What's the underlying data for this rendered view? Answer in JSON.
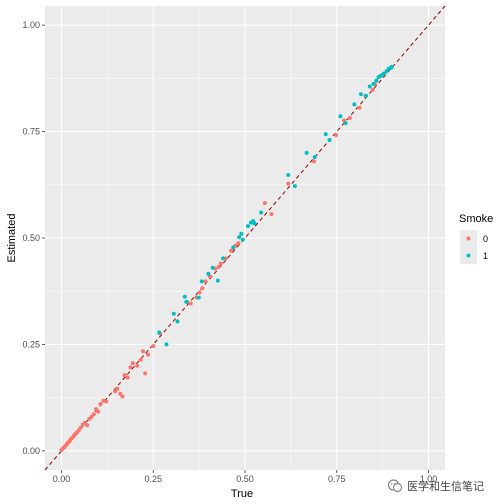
{
  "chart_data": {
    "type": "scatter",
    "title": "",
    "xlabel": "True",
    "ylabel": "Estimated",
    "xlim": [
      -0.045,
      1.045
    ],
    "ylim": [
      -0.045,
      1.045
    ],
    "x_ticks": [
      0,
      0.25,
      0.5,
      0.75,
      1
    ],
    "x_tick_labels": [
      "0.00",
      "0.25",
      "0.50",
      "0.75",
      "1.00"
    ],
    "y_ticks": [
      0,
      0.25,
      0.5,
      0.75,
      1
    ],
    "y_tick_labels": [
      "0.00",
      "0.25",
      "0.50",
      "0.75",
      "1.00"
    ],
    "grid": true,
    "legend": {
      "title": "Smoke",
      "position": "right"
    },
    "reference_line": {
      "type": "identity",
      "slope": 1,
      "intercept": 0,
      "style": "dashed",
      "color": "#8b0000"
    },
    "series": [
      {
        "name": "0",
        "color": "#F8766D",
        "points": [
          [
            0.0,
            0.002
          ],
          [
            0.004,
            0.006
          ],
          [
            0.008,
            0.009
          ],
          [
            0.011,
            0.012
          ],
          [
            0.014,
            0.015
          ],
          [
            0.017,
            0.019
          ],
          [
            0.02,
            0.021
          ],
          [
            0.023,
            0.024
          ],
          [
            0.026,
            0.028
          ],
          [
            0.03,
            0.031
          ],
          [
            0.034,
            0.036
          ],
          [
            0.038,
            0.04
          ],
          [
            0.042,
            0.043
          ],
          [
            0.047,
            0.048
          ],
          [
            0.052,
            0.054
          ],
          [
            0.058,
            0.062
          ],
          [
            0.064,
            0.066
          ],
          [
            0.07,
            0.06
          ],
          [
            0.076,
            0.075
          ],
          [
            0.082,
            0.08
          ],
          [
            0.088,
            0.086
          ],
          [
            0.094,
            0.098
          ],
          [
            0.1,
            0.092
          ],
          [
            0.106,
            0.11
          ],
          [
            0.114,
            0.118
          ],
          [
            0.122,
            0.116
          ],
          [
            0.146,
            0.14
          ],
          [
            0.152,
            0.146
          ],
          [
            0.16,
            0.134
          ],
          [
            0.166,
            0.128
          ],
          [
            0.172,
            0.178
          ],
          [
            0.18,
            0.172
          ],
          [
            0.188,
            0.196
          ],
          [
            0.194,
            0.206
          ],
          [
            0.206,
            0.2
          ],
          [
            0.216,
            0.214
          ],
          [
            0.222,
            0.234
          ],
          [
            0.228,
            0.182
          ],
          [
            0.236,
            0.226
          ],
          [
            0.25,
            0.246
          ],
          [
            0.268,
            0.276
          ],
          [
            0.342,
            0.35
          ],
          [
            0.352,
            0.346
          ],
          [
            0.368,
            0.36
          ],
          [
            0.376,
            0.372
          ],
          [
            0.384,
            0.382
          ],
          [
            0.392,
            0.398
          ],
          [
            0.404,
            0.41
          ],
          [
            0.418,
            0.428
          ],
          [
            0.428,
            0.432
          ],
          [
            0.434,
            0.44
          ],
          [
            0.448,
            0.452
          ],
          [
            0.462,
            0.47
          ],
          [
            0.468,
            0.476
          ],
          [
            0.474,
            0.482
          ],
          [
            0.482,
            0.488
          ],
          [
            0.554,
            0.582
          ],
          [
            0.572,
            0.556
          ],
          [
            0.618,
            0.628
          ],
          [
            0.688,
            0.68
          ],
          [
            0.748,
            0.742
          ],
          [
            0.77,
            0.776
          ],
          [
            0.786,
            0.782
          ],
          [
            0.812,
            0.806
          ],
          [
            0.828,
            0.834
          ],
          [
            0.848,
            0.848
          ],
          [
            0.854,
            0.862
          ],
          [
            0.868,
            0.88
          ],
          [
            0.88,
            0.886
          ]
        ]
      },
      {
        "name": "1",
        "color": "#00BFC4",
        "points": [
          [
            0.266,
            0.278
          ],
          [
            0.286,
            0.25
          ],
          [
            0.306,
            0.322
          ],
          [
            0.316,
            0.304
          ],
          [
            0.336,
            0.362
          ],
          [
            0.34,
            0.35
          ],
          [
            0.374,
            0.36
          ],
          [
            0.382,
            0.398
          ],
          [
            0.4,
            0.416
          ],
          [
            0.412,
            0.43
          ],
          [
            0.426,
            0.4
          ],
          [
            0.44,
            0.452
          ],
          [
            0.468,
            0.478
          ],
          [
            0.484,
            0.502
          ],
          [
            0.49,
            0.51
          ],
          [
            0.494,
            0.496
          ],
          [
            0.508,
            0.528
          ],
          [
            0.516,
            0.536
          ],
          [
            0.522,
            0.54
          ],
          [
            0.526,
            0.534
          ],
          [
            0.544,
            0.56
          ],
          [
            0.618,
            0.648
          ],
          [
            0.636,
            0.622
          ],
          [
            0.668,
            0.7
          ],
          [
            0.69,
            0.69
          ],
          [
            0.72,
            0.744
          ],
          [
            0.73,
            0.73
          ],
          [
            0.76,
            0.786
          ],
          [
            0.774,
            0.77
          ],
          [
            0.798,
            0.814
          ],
          [
            0.816,
            0.838
          ],
          [
            0.83,
            0.834
          ],
          [
            0.84,
            0.856
          ],
          [
            0.85,
            0.862
          ],
          [
            0.858,
            0.87
          ],
          [
            0.864,
            0.878
          ],
          [
            0.872,
            0.882
          ],
          [
            0.878,
            0.886
          ],
          [
            0.886,
            0.892
          ],
          [
            0.892,
            0.898
          ],
          [
            0.898,
            0.9
          ],
          [
            0.9,
            0.902
          ]
        ]
      }
    ]
  },
  "watermark": {
    "text": "医学和生信笔记",
    "icon": "wechat-logo-icon"
  }
}
